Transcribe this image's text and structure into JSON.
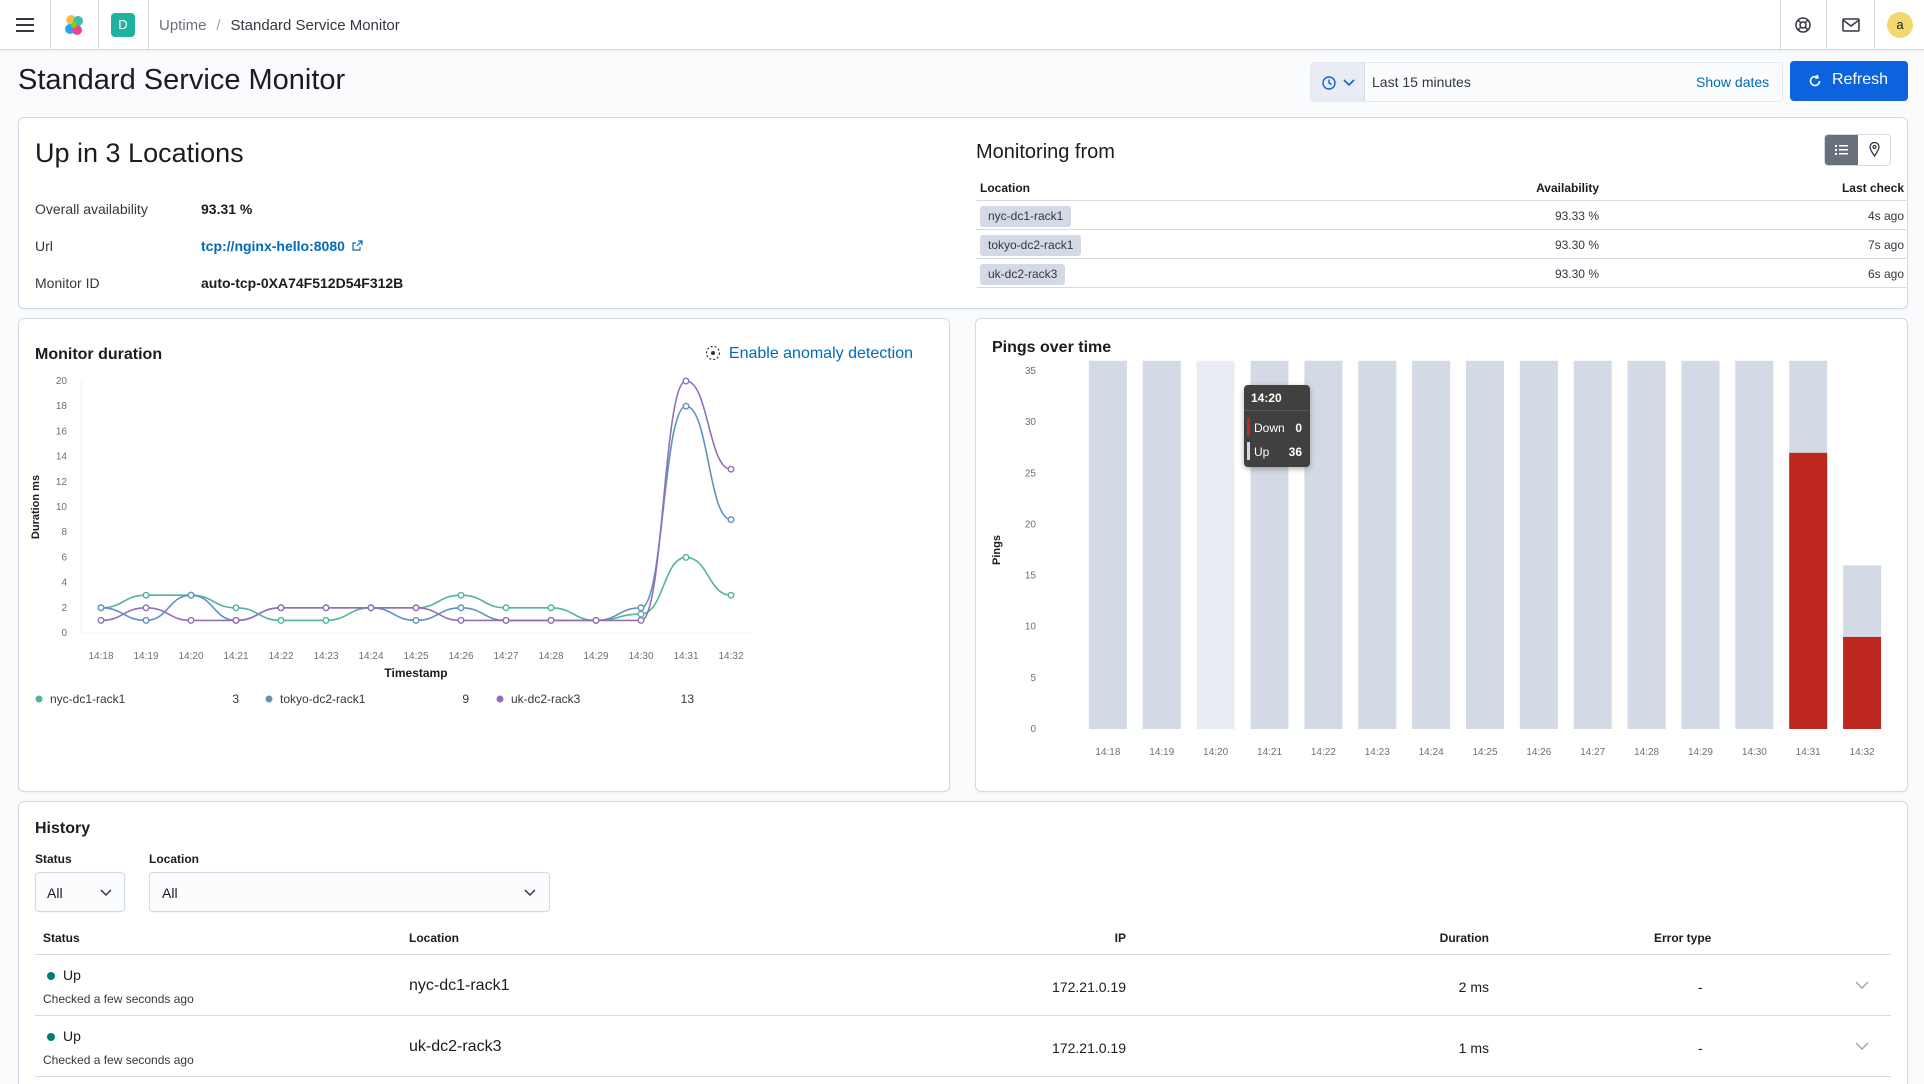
{
  "header": {
    "space_initial": "D",
    "breadcrumbs": [
      "Uptime",
      "Standard Service Monitor"
    ],
    "avatar_initial": "a"
  },
  "page": {
    "title": "Standard Service Monitor"
  },
  "datepicker": {
    "range": "Last 15 minutes",
    "show_dates": "Show dates",
    "refresh": "Refresh"
  },
  "status": {
    "title": "Up in 3 Locations",
    "availability_label": "Overall availability",
    "availability_value": "93.31 %",
    "url_label": "Url",
    "url_value": "tcp://nginx-hello:8080",
    "monitor_id_label": "Monitor ID",
    "monitor_id_value": "auto-tcp-0XA74F512D54F312B"
  },
  "monitoring_from": {
    "title": "Monitoring from",
    "columns": [
      "Location",
      "Availability",
      "Last check"
    ],
    "rows": [
      {
        "location": "nyc-dc1-rack1",
        "availability": "93.33 %",
        "last_check": "4s ago"
      },
      {
        "location": "tokyo-dc2-rack1",
        "availability": "93.30 %",
        "last_check": "7s ago"
      },
      {
        "location": "uk-dc2-rack3",
        "availability": "93.30 %",
        "last_check": "6s ago"
      }
    ]
  },
  "duration_panel": {
    "title": "Monitor duration",
    "anomaly_link": "Enable anomaly detection"
  },
  "pings_panel": {
    "title": "Pings over time"
  },
  "tooltip": {
    "time": "14:20",
    "down_label": "Down",
    "down_value": "0",
    "up_label": "Up",
    "up_value": "36"
  },
  "chart_data": [
    {
      "type": "line",
      "title": "Monitor duration",
      "xlabel": "Timestamp",
      "ylabel": "Duration ms",
      "x": [
        "14:18",
        "14:19",
        "14:20",
        "14:21",
        "14:22",
        "14:23",
        "14:24",
        "14:25",
        "14:26",
        "14:27",
        "14:28",
        "14:29",
        "14:30",
        "14:31",
        "14:32"
      ],
      "yticks": [
        0,
        2,
        4,
        6,
        8,
        10,
        12,
        14,
        16,
        18,
        20
      ],
      "ylim": [
        0,
        20
      ],
      "series": [
        {
          "name": "nyc-dc1-rack1",
          "legend_value": "3",
          "color": "#54b399",
          "values": [
            2,
            3,
            3,
            2,
            1,
            1,
            2,
            2,
            3,
            2,
            2,
            1,
            1.5,
            6,
            3
          ]
        },
        {
          "name": "tokyo-dc2-rack1",
          "legend_value": "9",
          "color": "#6092c0",
          "values": [
            2,
            1,
            3,
            1,
            2,
            2,
            2,
            1,
            2,
            1,
            1,
            1,
            2,
            18,
            9
          ]
        },
        {
          "name": "uk-dc2-rack3",
          "legend_value": "13",
          "color": "#9170b8",
          "values": [
            1,
            2,
            1,
            1,
            2,
            2,
            2,
            2,
            1,
            1,
            1,
            1,
            1,
            20,
            13
          ]
        }
      ],
      "grid": false,
      "legend": "bottom-left"
    },
    {
      "type": "bar",
      "title": "Pings over time",
      "ylabel": "Pings",
      "categories": [
        "14:18",
        "14:19",
        "14:20",
        "14:21",
        "14:22",
        "14:23",
        "14:24",
        "14:25",
        "14:26",
        "14:27",
        "14:28",
        "14:29",
        "14:30",
        "14:31",
        "14:32"
      ],
      "yticks": [
        0,
        5,
        10,
        15,
        20,
        25,
        30,
        35
      ],
      "ylim": [
        0,
        35
      ],
      "series": [
        {
          "name": "Down",
          "color": "#bd271e",
          "values": [
            0,
            0,
            0,
            0,
            0,
            0,
            0,
            0,
            0,
            0,
            0,
            0,
            0,
            27,
            9
          ]
        },
        {
          "name": "Up",
          "color": "#d3dae6",
          "values": [
            36,
            36,
            36,
            36,
            36,
            36,
            36,
            36,
            36,
            36,
            36,
            36,
            36,
            9,
            7
          ]
        }
      ],
      "highlighted": "14:20",
      "grid": false
    }
  ],
  "history": {
    "title": "History",
    "status_filter_label": "Status",
    "status_filter_value": "All",
    "location_filter_label": "Location",
    "location_filter_value": "All",
    "columns": [
      "Status",
      "Location",
      "IP",
      "Duration",
      "Error type"
    ],
    "rows": [
      {
        "status": "Up",
        "checked": "Checked a few seconds ago",
        "location": "nyc-dc1-rack1",
        "ip": "172.21.0.19",
        "duration": "2 ms",
        "error": "-"
      },
      {
        "status": "Up",
        "checked": "Checked a few seconds ago",
        "location": "uk-dc2-rack3",
        "ip": "172.21.0.19",
        "duration": "1 ms",
        "error": "-"
      }
    ]
  },
  "colors": {
    "primary": "#0b64dd",
    "up": "#017d73",
    "down": "#bd271e"
  }
}
